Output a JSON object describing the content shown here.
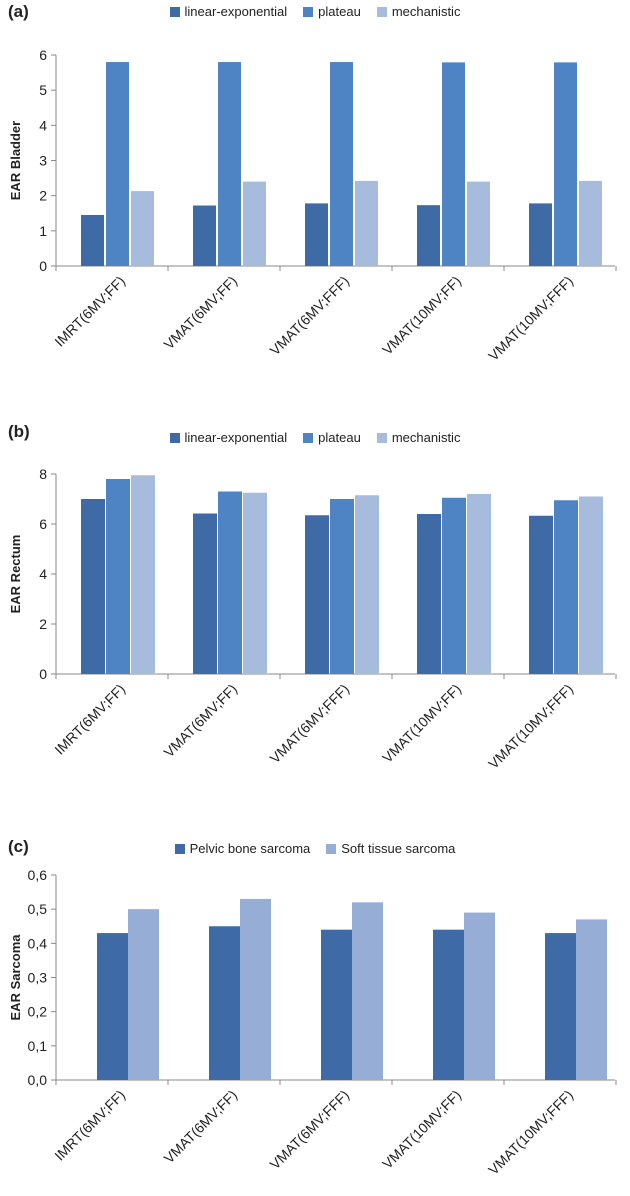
{
  "panels": [
    {
      "letter": "(a)"
    },
    {
      "letter": "(b)"
    },
    {
      "letter": "(c)"
    }
  ],
  "chart_data": [
    {
      "type": "bar",
      "categories": [
        "IMRT(6MV;FF)",
        "VMAT(6MV;FF)",
        "VMAT(6MV;FFF)",
        "VMAT(10MV;FF)",
        "VMAT(10MV;FFF)"
      ],
      "series": [
        {
          "name": "linear-exponential",
          "color": "#3e6aa5",
          "values": [
            1.45,
            1.72,
            1.78,
            1.73,
            1.78
          ]
        },
        {
          "name": "plateau",
          "color": "#4f84c4",
          "values": [
            5.8,
            5.8,
            5.8,
            5.79,
            5.79
          ]
        },
        {
          "name": "mechanistic",
          "color": "#a7bbdc",
          "values": [
            2.13,
            2.4,
            2.42,
            2.4,
            2.42
          ]
        }
      ],
      "ylabel": "EAR Bladder",
      "ylim": [
        0,
        6
      ],
      "yticks": [
        "0",
        "1",
        "2",
        "3",
        "4",
        "5",
        "6"
      ],
      "grid": false,
      "legend": "top"
    },
    {
      "type": "bar",
      "categories": [
        "IMRT(6MV;FF)",
        "VMAT(6MV;FF)",
        "VMAT(6MV;FFF)",
        "VMAT(10MV;FF)",
        "VMAT(10MV;FFF)"
      ],
      "series": [
        {
          "name": "linear-exponential",
          "color": "#3e6aa5",
          "values": [
            7.0,
            6.42,
            6.35,
            6.4,
            6.33
          ]
        },
        {
          "name": "plateau",
          "color": "#4f84c4",
          "values": [
            7.8,
            7.3,
            7.0,
            7.05,
            6.95
          ]
        },
        {
          "name": "mechanistic",
          "color": "#a7bbdc",
          "values": [
            7.95,
            7.25,
            7.15,
            7.2,
            7.1
          ]
        }
      ],
      "ylabel": "EAR Rectum",
      "ylim": [
        0,
        8
      ],
      "yticks": [
        "0",
        "2",
        "4",
        "6",
        "8"
      ],
      "grid": false,
      "legend": "top"
    },
    {
      "type": "bar",
      "categories": [
        "IMRT(6MV;FF)",
        "VMAT(6MV;FF)",
        "VMAT(6MV;FFF)",
        "VMAT(10MV;FF)",
        "VMAT(10MV;FFF)"
      ],
      "series": [
        {
          "name": "Pelvic bone sarcoma",
          "color": "#3e6aa5",
          "values": [
            0.43,
            0.45,
            0.44,
            0.44,
            0.43
          ]
        },
        {
          "name": "Soft tissue sarcoma",
          "color": "#96aed6",
          "values": [
            0.5,
            0.53,
            0.52,
            0.49,
            0.47
          ]
        }
      ],
      "ylabel": "EAR Sarcoma",
      "ylim": [
        0,
        0.6
      ],
      "yticks": [
        "0,0",
        "0,1",
        "0,2",
        "0,3",
        "0,4",
        "0,5",
        "0,6"
      ],
      "grid": false,
      "legend": "top"
    }
  ]
}
